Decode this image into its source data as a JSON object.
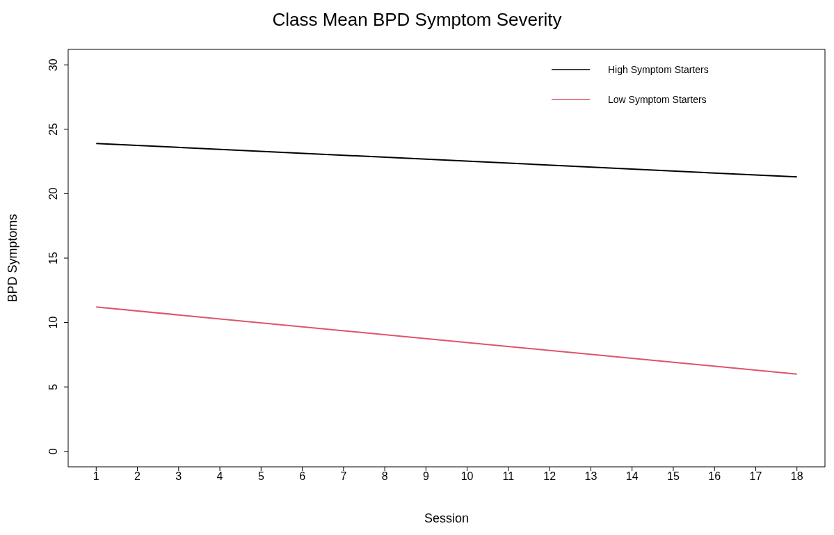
{
  "chart_data": {
    "type": "line",
    "title": "Class Mean BPD Symptom Severity",
    "xlabel": "Session",
    "ylabel": "BPD Symptoms",
    "x": [
      1,
      18
    ],
    "series": [
      {
        "name": "High Symptom Starters",
        "color": "#000000",
        "values": [
          23.9,
          21.3
        ]
      },
      {
        "name": "Low Symptom Starters",
        "color": "#df536b",
        "values": [
          11.2,
          6.0
        ]
      }
    ],
    "xlim": [
      0.32,
      18.68
    ],
    "xticks": [
      1,
      2,
      3,
      4,
      5,
      6,
      7,
      8,
      9,
      10,
      11,
      12,
      13,
      14,
      15,
      16,
      17,
      18
    ],
    "ylim": [
      -1.2,
      31.2
    ],
    "yticks": [
      0,
      5,
      10,
      15,
      20,
      25,
      30
    ],
    "legend": "top right",
    "marker": "none",
    "line_style": "solid"
  }
}
